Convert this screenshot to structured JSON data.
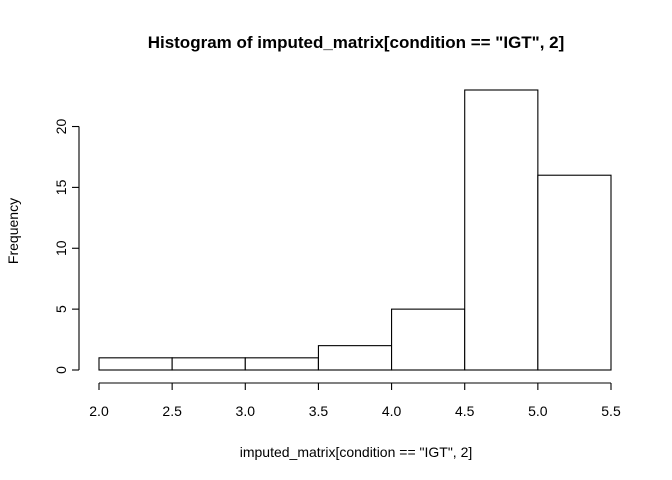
{
  "chart_data": {
    "type": "bar",
    "title": "Histogram of imputed_matrix[condition == \"IGT\", 2]",
    "xlabel": "imputed_matrix[condition == \"IGT\", 2]",
    "ylabel": "Frequency",
    "bins": [
      {
        "start": 2.0,
        "end": 2.5,
        "count": 1
      },
      {
        "start": 2.5,
        "end": 3.0,
        "count": 1
      },
      {
        "start": 3.0,
        "end": 3.5,
        "count": 1
      },
      {
        "start": 3.5,
        "end": 4.0,
        "count": 2
      },
      {
        "start": 4.0,
        "end": 4.5,
        "count": 5
      },
      {
        "start": 4.5,
        "end": 5.0,
        "count": 23
      },
      {
        "start": 5.0,
        "end": 5.5,
        "count": 16
      }
    ],
    "xlim": [
      2.0,
      5.5
    ],
    "ylim": [
      0,
      23
    ],
    "x_ticks": [
      2.0,
      2.5,
      3.0,
      3.5,
      4.0,
      4.5,
      5.0,
      5.5
    ],
    "x_tick_labels": [
      "2.0",
      "2.5",
      "3.0",
      "3.5",
      "4.0",
      "4.5",
      "5.0",
      "5.5"
    ],
    "y_ticks": [
      0,
      5,
      10,
      15,
      20
    ],
    "y_tick_labels": [
      "0",
      "5",
      "10",
      "15",
      "20"
    ],
    "grid": false,
    "bar_fill": "#ffffff",
    "bar_stroke": "#000000"
  }
}
